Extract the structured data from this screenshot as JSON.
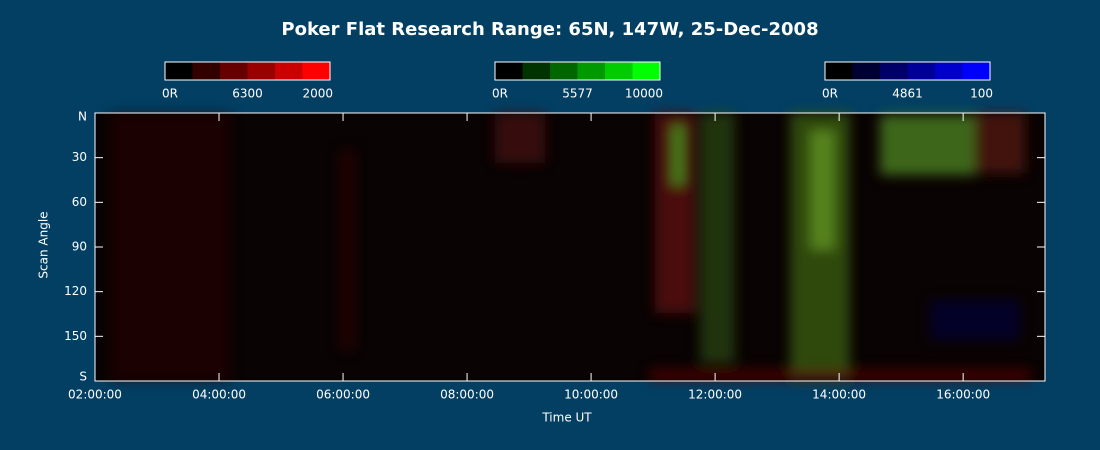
{
  "chart_data": {
    "type": "heatmap",
    "title": "Poker Flat Research Range: 65N, 147W, 25-Dec-2008",
    "x_label": "Time UT",
    "y_label": "Scan Angle",
    "xlim": [
      2,
      17.32
    ],
    "ylim": [
      180,
      0
    ],
    "xticks": [
      {
        "value": 2,
        "label": "02:00:00"
      },
      {
        "value": 4,
        "label": "04:00:00"
      },
      {
        "value": 6,
        "label": "06:00:00"
      },
      {
        "value": 8,
        "label": "08:00:00"
      },
      {
        "value": 10,
        "label": "10:00:00"
      },
      {
        "value": 12,
        "label": "12:00:00"
      },
      {
        "value": 14,
        "label": "14:00:00"
      },
      {
        "value": 16,
        "label": "16:00:00"
      }
    ],
    "yticks": [
      {
        "value": 0,
        "label": "N"
      },
      30,
      60,
      90,
      120,
      150,
      {
        "value": 180,
        "label": "S"
      }
    ],
    "colorbars": [
      {
        "name": "6300",
        "color": "#ff0000",
        "ticks": [
          {
            "value": 0,
            "label": "0R"
          },
          2000
        ]
      },
      {
        "name": "5577",
        "color": "#00ff00",
        "ticks": [
          {
            "value": 0,
            "label": "0R"
          },
          10000
        ]
      },
      {
        "name": "4861",
        "color": "#0000ff",
        "ticks": [
          {
            "value": 0,
            "label": "0R"
          },
          100
        ]
      }
    ]
  }
}
